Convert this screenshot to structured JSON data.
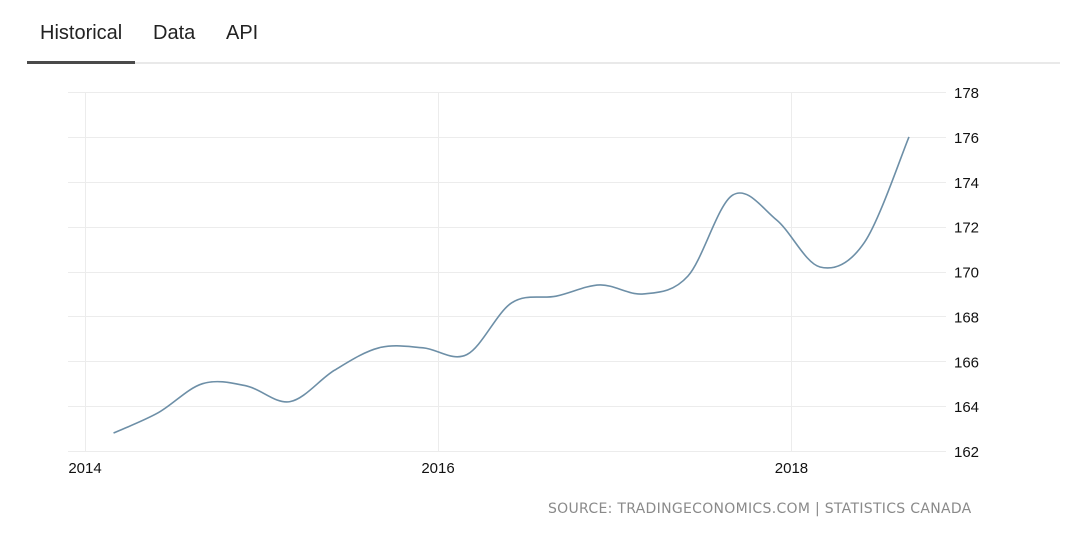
{
  "tabs": [
    {
      "label": "Historical",
      "active": true
    },
    {
      "label": "Data",
      "active": false
    },
    {
      "label": "API",
      "active": false
    }
  ],
  "source": "SOURCE: TRADINGECONOMICS.COM | STATISTICS CANADA",
  "colors": {
    "line": "#6d8fa7",
    "grid": "#ececec",
    "tab_underline": "#4a4a4a"
  },
  "chart_data": {
    "type": "line",
    "title": "",
    "xlabel": "",
    "ylabel": "",
    "x_ticks": [
      "2014",
      "2016",
      "2018"
    ],
    "y_ticks": [
      162,
      164,
      166,
      168,
      170,
      172,
      174,
      176,
      178
    ],
    "ylim": [
      162,
      178
    ],
    "xlim": [
      "2014-01-01",
      "2018-12-31"
    ],
    "y_axis_position": "right",
    "grid": true,
    "legend": "none",
    "series": [
      {
        "x": [
          "2014-03-01",
          "2014-06-01",
          "2014-09-01",
          "2014-12-01",
          "2015-03-01",
          "2015-06-01",
          "2015-09-01",
          "2015-12-01",
          "2016-03-01",
          "2016-06-01",
          "2016-09-01",
          "2016-12-01",
          "2017-03-01",
          "2017-06-01",
          "2017-09-01",
          "2017-12-01",
          "2018-03-01",
          "2018-06-01",
          "2018-09-01"
        ],
        "y": [
          162.8,
          163.7,
          165.0,
          164.9,
          164.2,
          165.6,
          166.6,
          166.6,
          166.3,
          168.6,
          168.9,
          169.4,
          169.0,
          169.8,
          173.4,
          172.3,
          170.2,
          171.3,
          176.0
        ]
      }
    ]
  }
}
